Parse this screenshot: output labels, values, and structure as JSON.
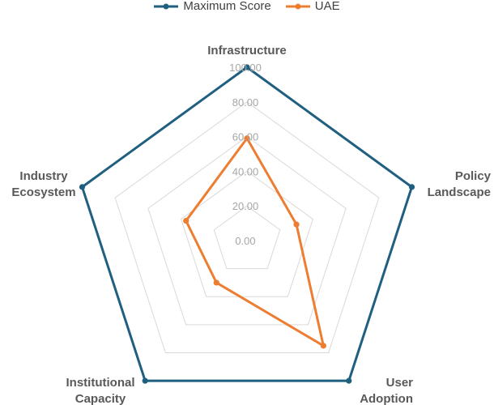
{
  "chart_data": {
    "type": "radar",
    "axes": [
      "Infrastructure",
      "Policy Landscape",
      "User Adoption",
      "Institutional Capacity",
      "Industry Ecosystem"
    ],
    "axis_label_lines": [
      [
        "Infrastructure"
      ],
      [
        "Policy",
        "Landscape"
      ],
      [
        "User",
        "Adoption"
      ],
      [
        "Institutional",
        "Capacity"
      ],
      [
        "Industry",
        "Ecosystem"
      ]
    ],
    "rlim": [
      0,
      100
    ],
    "ticks": [
      "0.00",
      "20.00",
      "40.00",
      "60.00",
      "80.00",
      "100.00"
    ],
    "tick_values": [
      0,
      20,
      40,
      60,
      80,
      100
    ],
    "series": [
      {
        "name": "Maximum Score",
        "color": "#1f5f7f",
        "values": [
          100,
          100,
          100,
          100,
          100
        ]
      },
      {
        "name": "UAE",
        "color": "#ed7d31",
        "values": [
          59,
          30,
          75,
          30,
          37
        ]
      }
    ],
    "legend": "top-center",
    "grid": true
  }
}
